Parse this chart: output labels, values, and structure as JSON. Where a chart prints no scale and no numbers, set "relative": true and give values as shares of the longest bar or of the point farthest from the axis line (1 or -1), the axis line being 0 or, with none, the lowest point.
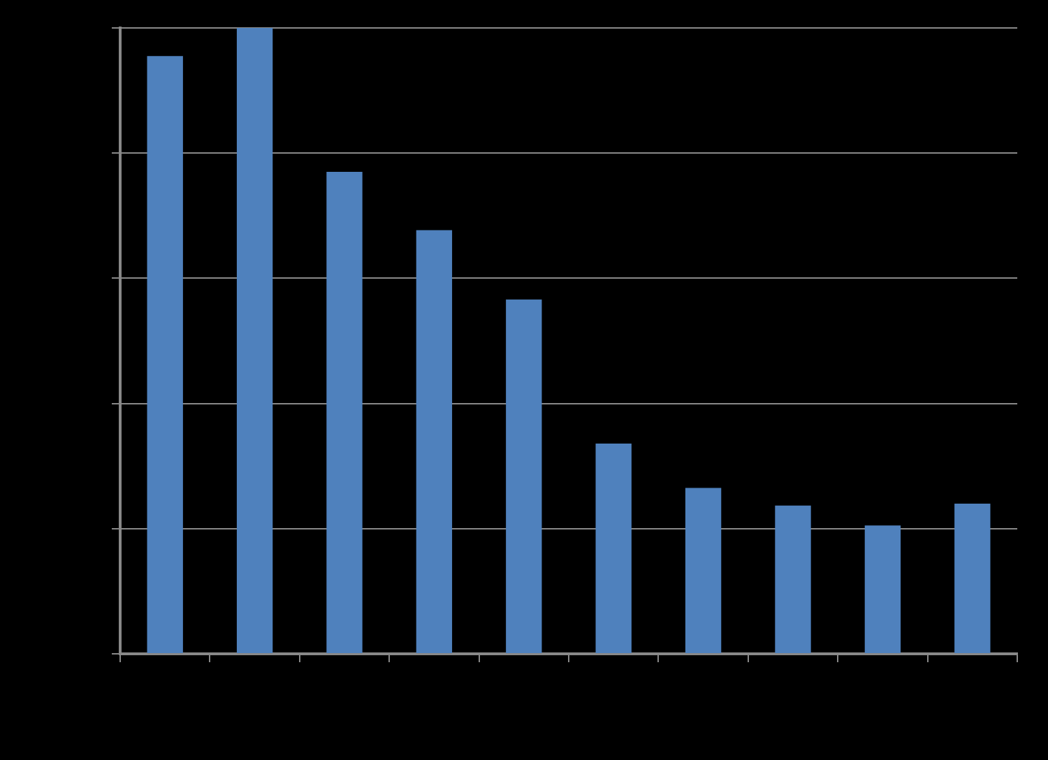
{
  "chart_data": {
    "type": "bar",
    "relative": true,
    "categories": [
      null,
      null,
      null,
      null,
      null,
      null,
      null,
      null,
      null,
      null
    ],
    "values": [
      0.955,
      1,
      0.77,
      0.677,
      0.566,
      0.336,
      0.265,
      0.237,
      0.205,
      0.24
    ],
    "color": "#4f81bd",
    "grid": "y",
    "legend": false
  }
}
